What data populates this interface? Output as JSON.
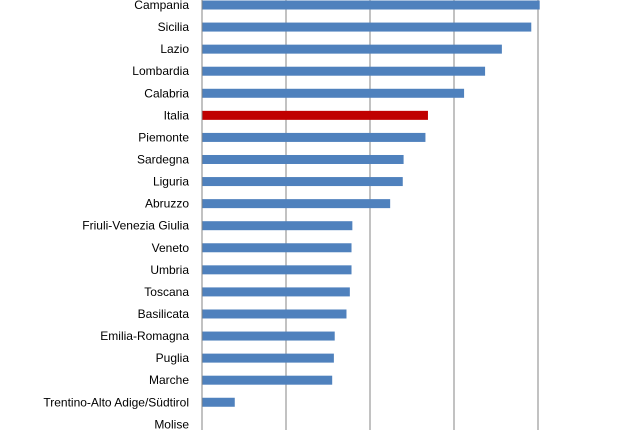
{
  "chart_data": {
    "type": "bar",
    "orientation": "horizontal",
    "categories": [
      "Campania",
      "Sicilia",
      "Lazio",
      "Lombardia",
      "Calabria",
      "Italia",
      "Piemonte",
      "Sardegna",
      "Liguria",
      "Abruzzo",
      "Friuli-Venezia Giulia",
      "Veneto",
      "Umbria",
      "Toscana",
      "Basilicata",
      "Emilia-Romagna",
      "Puglia",
      "Marche",
      "Trentino-Alto Adige/Südtirol",
      "Molise"
    ],
    "values": [
      40.2,
      39.2,
      35.7,
      33.7,
      31.2,
      26.9,
      26.6,
      24.0,
      23.9,
      22.4,
      17.9,
      17.8,
      17.8,
      17.6,
      17.2,
      15.8,
      15.7,
      15.5,
      3.9,
      0
    ],
    "highlight_category": "Italia",
    "colors": {
      "bar": "#4f81bd",
      "highlight": "#c00000",
      "grid": "#868686",
      "axis": "#868686"
    },
    "xlim": [
      0,
      50
    ],
    "grid": "vertical",
    "title": "",
    "xlabel": "",
    "ylabel": ""
  }
}
